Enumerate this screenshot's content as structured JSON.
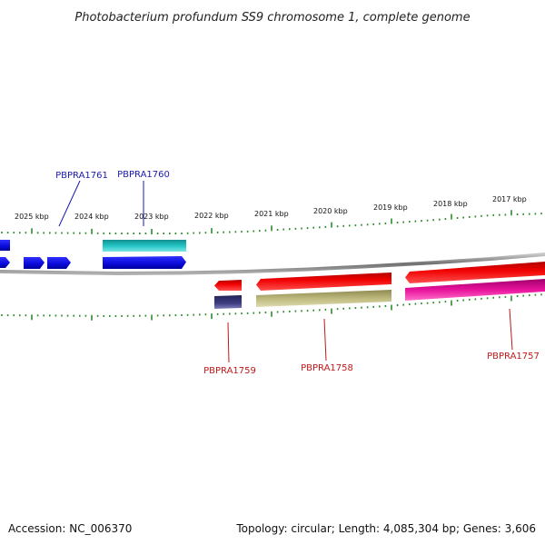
{
  "title": "Photobacterium profundum SS9 chromosome 1, complete genome",
  "footer": {
    "accession": "Accession: NC_006370",
    "summary": "Topology: circular; Length: 4,085,304 bp; Genes: 3,606"
  },
  "scale_labels": [
    "2025 kbp",
    "2024 kbp",
    "2023 kbp",
    "2022 kbp",
    "2021 kbp",
    "2020 kbp",
    "2019 kbp",
    "2018 kbp",
    "2017 kbp"
  ],
  "gene_labels": {
    "PBPRA1761": "PBPRA1761",
    "PBPRA1760": "PBPRA1760",
    "PBPRA1759": "PBPRA1759",
    "PBPRA1758": "PBPRA1758",
    "PBPRA1757": "PBPRA1757"
  },
  "colors": {
    "backbone": "#8a8a8a",
    "ticks": "#2e8b2e",
    "forward_label": "#1a1ab0",
    "reverse_label": "#c01818",
    "blue_gene": "#1010e0",
    "cyan_gene": "#20c0c0",
    "red_gene": "#ee0000",
    "navy_gene": "#3a3a7a",
    "olive_gene": "#b8b478",
    "magenta_gene": "#e0109a"
  }
}
